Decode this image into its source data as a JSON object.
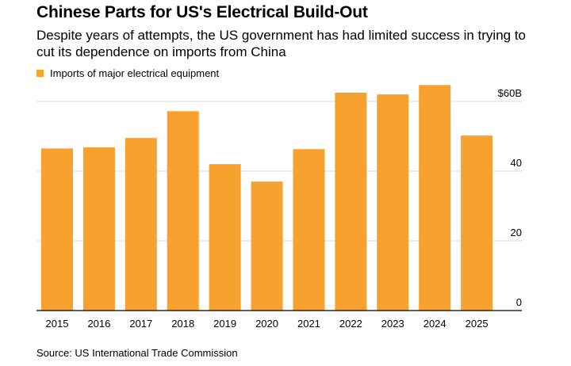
{
  "title": "Chinese Parts for US's Electrical Build-Out",
  "subtitle": "Despite years of attempts, the US government has had limited success in trying to cut its dependence on imports from China",
  "legend_label": "Imports of major electrical equipment",
  "source": "Source: US International Trade Commission",
  "colors": {
    "bar": "#f7a12f",
    "grid": "#d9d9d9",
    "axis": "#000000"
  },
  "chart_data": {
    "type": "bar",
    "categories": [
      "2015",
      "2016",
      "2017",
      "2018",
      "2019",
      "2020",
      "2021",
      "2022",
      "2023",
      "2024",
      "2025"
    ],
    "series": [
      {
        "name": "Imports of major electrical equipment",
        "values": [
          46.5,
          46.8,
          49.5,
          57.2,
          42.0,
          37.0,
          46.3,
          62.5,
          62.0,
          64.7,
          50.2
        ]
      }
    ],
    "ylim": [
      0,
      60
    ],
    "yticks": [
      0,
      20,
      40,
      60
    ],
    "ytick_labels": [
      "0",
      "20",
      "40",
      "$60B"
    ],
    "axis_position": "right",
    "grid": true,
    "legend_position": "top-left"
  }
}
